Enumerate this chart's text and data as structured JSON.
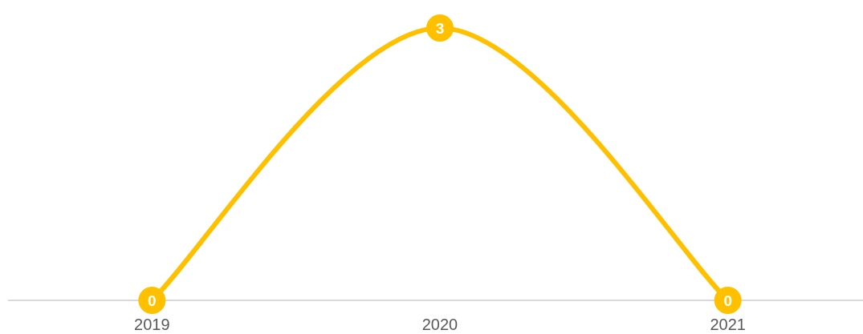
{
  "chart_data": {
    "type": "line",
    "categories": [
      "2019",
      "2020",
      "2021"
    ],
    "values": [
      0,
      3,
      0
    ],
    "color": "#ffc000",
    "marker": "circle",
    "line_style": "solid",
    "data_labels": true,
    "tick_labels": "x"
  }
}
